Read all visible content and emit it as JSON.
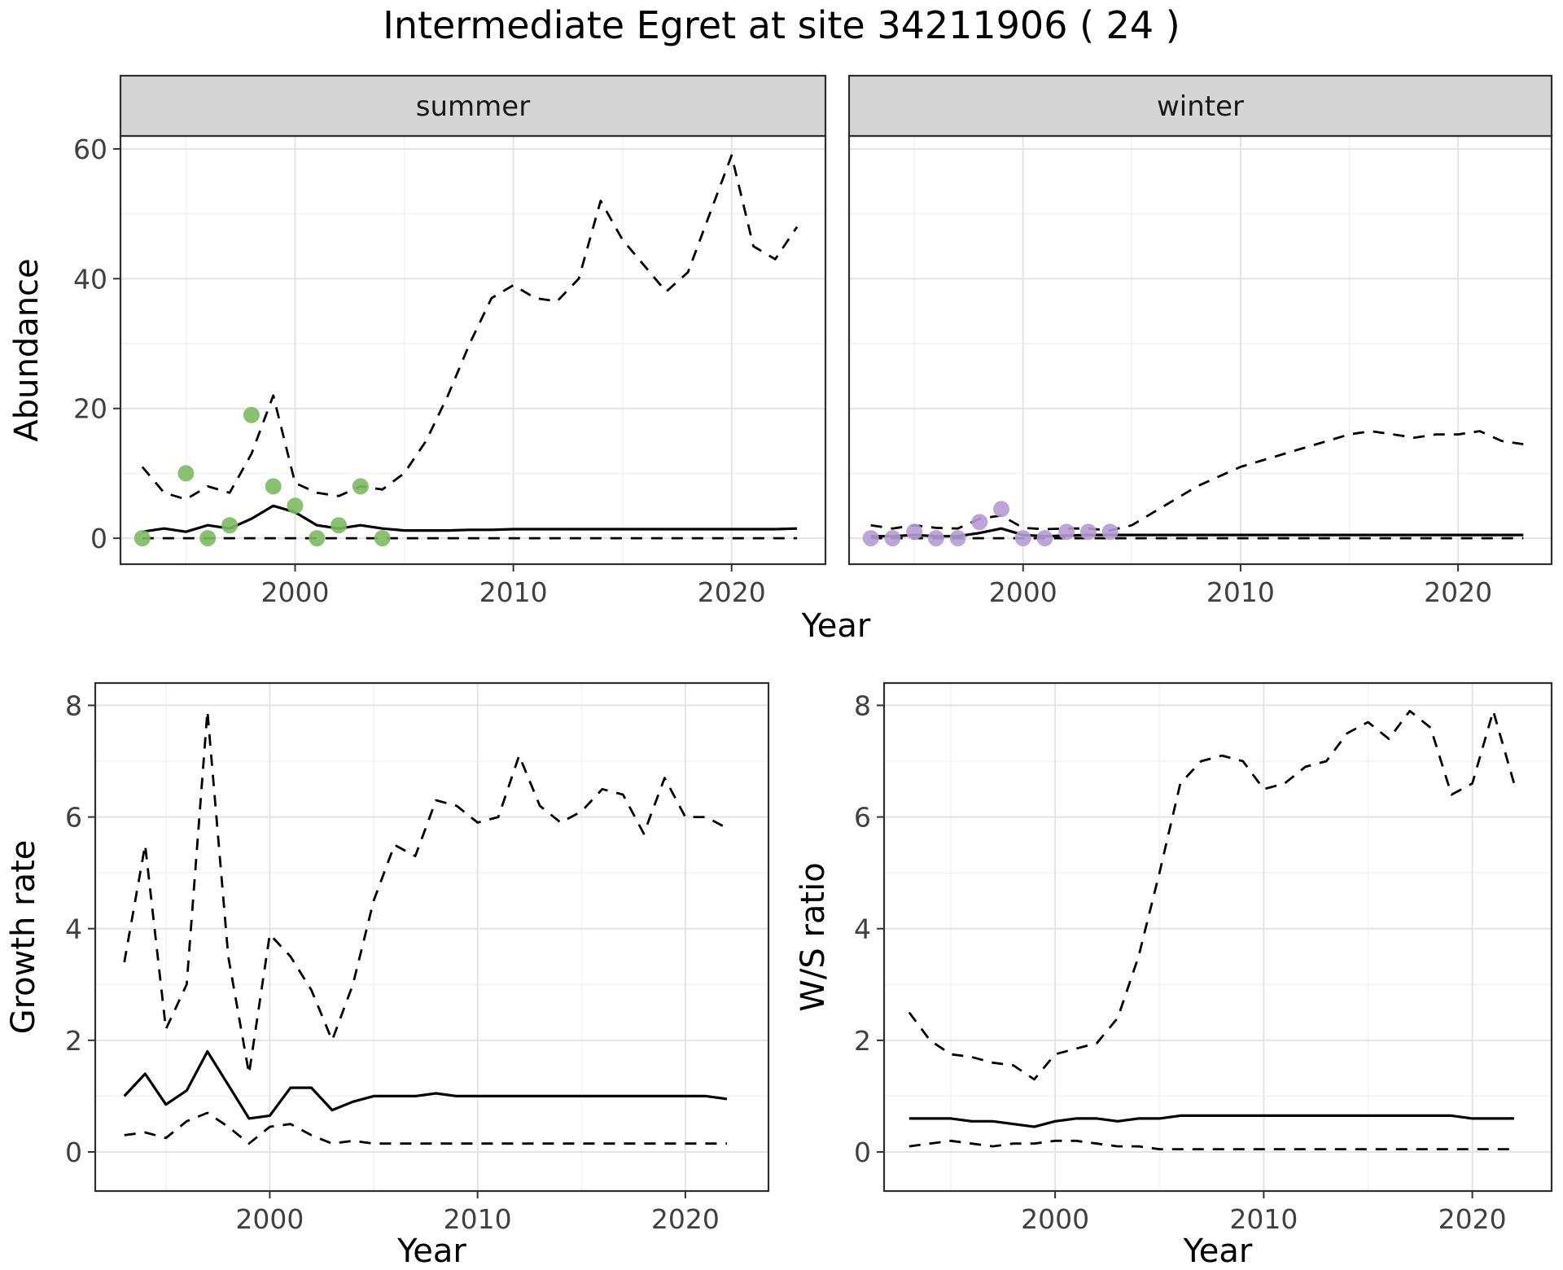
{
  "title": "Intermediate Egret at site 34211906 ( 24 )",
  "colors": {
    "line": "#000000",
    "strip_bg": "#d5d5d5",
    "panel_border": "#2e2e2e",
    "grid_major": "#e4e4e4",
    "grid_minor": "#f3f3f3",
    "tick_text": "#404040",
    "summer_points": "#7bbb5f",
    "winter_points": "#b79bd4"
  },
  "chart_data": [
    {
      "id": "abundance-summer",
      "type": "line",
      "facet_label": "summer",
      "xlabel": "Year",
      "ylabel": "Abundance",
      "xticks": [
        "2000",
        "2010",
        "2020"
      ],
      "xtick_values": [
        2000,
        2010,
        2020
      ],
      "yticks": [
        "0",
        "20",
        "40",
        "60"
      ],
      "ytick_values": [
        0,
        20,
        40,
        60
      ],
      "xlim": [
        1992,
        2024
      ],
      "ylim": [
        0,
        60
      ],
      "x": [
        1993,
        1994,
        1995,
        1996,
        1997,
        1998,
        1999,
        2000,
        2001,
        2002,
        2003,
        2004,
        2005,
        2006,
        2007,
        2008,
        2009,
        2010,
        2011,
        2012,
        2013,
        2014,
        2015,
        2016,
        2017,
        2018,
        2019,
        2020,
        2021,
        2022,
        2023
      ],
      "series": [
        {
          "name": "upper-ci",
          "style": "dashed",
          "values": [
            11,
            7,
            6,
            8,
            7,
            13,
            22,
            8.5,
            7,
            6.5,
            8,
            7.5,
            10,
            15,
            22,
            30,
            37,
            39,
            37,
            36.5,
            40,
            52,
            46,
            42,
            38,
            41,
            50,
            59,
            45,
            43,
            48
          ]
        },
        {
          "name": "median",
          "style": "solid",
          "values": [
            1,
            1.5,
            1,
            2,
            1.5,
            3,
            5,
            4,
            2,
            1.5,
            2,
            1.5,
            1.2,
            1.2,
            1.2,
            1.3,
            1.3,
            1.4,
            1.4,
            1.4,
            1.4,
            1.4,
            1.4,
            1.4,
            1.4,
            1.4,
            1.4,
            1.4,
            1.4,
            1.4,
            1.5
          ]
        },
        {
          "name": "lower-ci",
          "style": "dashed",
          "values": [
            0,
            0,
            0,
            0,
            0,
            0,
            0,
            0,
            0,
            0,
            0,
            0,
            0,
            0,
            0,
            0,
            0,
            0,
            0,
            0,
            0,
            0,
            0,
            0,
            0,
            0,
            0,
            0,
            0,
            0,
            0
          ]
        }
      ],
      "points": {
        "name": "observed",
        "color": "#7bbb5f",
        "x": [
          1993,
          1995,
          1996,
          1997,
          1998,
          1999,
          2000,
          2001,
          2002,
          2003,
          2004
        ],
        "y": [
          0,
          10,
          0,
          2,
          19,
          8,
          5,
          0,
          2,
          8,
          0
        ]
      }
    },
    {
      "id": "abundance-winter",
      "type": "line",
      "facet_label": "winter",
      "xlabel": "Year",
      "ylabel": "Abundance",
      "xticks": [
        "2000",
        "2010",
        "2020"
      ],
      "xtick_values": [
        2000,
        2010,
        2020
      ],
      "yticks": [
        "0",
        "20",
        "40",
        "60"
      ],
      "ytick_values": [
        0,
        20,
        40,
        60
      ],
      "xlim": [
        1992,
        2024
      ],
      "ylim": [
        0,
        60
      ],
      "x": [
        1993,
        1994,
        1995,
        1996,
        1997,
        1998,
        1999,
        2000,
        2001,
        2002,
        2003,
        2004,
        2005,
        2006,
        2007,
        2008,
        2009,
        2010,
        2011,
        2012,
        2013,
        2014,
        2015,
        2016,
        2017,
        2018,
        2019,
        2020,
        2021,
        2022,
        2023
      ],
      "series": [
        {
          "name": "upper-ci",
          "style": "dashed",
          "values": [
            2,
            1.5,
            2,
            1.6,
            1.5,
            3,
            3.5,
            1.6,
            1.4,
            1.5,
            1.5,
            1.2,
            2,
            4,
            6,
            8,
            9.5,
            11,
            12,
            13,
            14,
            15,
            16,
            16.5,
            16,
            15.5,
            16,
            16,
            16.5,
            15,
            14.5
          ]
        },
        {
          "name": "median",
          "style": "solid",
          "values": [
            0.3,
            0.3,
            0.5,
            0.3,
            0.3,
            0.8,
            1.5,
            0.5,
            0.3,
            0.4,
            0.5,
            0.5,
            0.5,
            0.5,
            0.5,
            0.5,
            0.5,
            0.5,
            0.5,
            0.5,
            0.5,
            0.5,
            0.5,
            0.5,
            0.5,
            0.5,
            0.5,
            0.5,
            0.5,
            0.5,
            0.5
          ]
        },
        {
          "name": "lower-ci",
          "style": "dashed",
          "values": [
            0,
            0,
            0,
            0,
            0,
            0,
            0,
            0,
            0,
            0,
            0,
            0,
            0,
            0,
            0,
            0,
            0,
            0,
            0,
            0,
            0,
            0,
            0,
            0,
            0,
            0,
            0,
            0,
            0,
            0,
            0
          ]
        }
      ],
      "points": {
        "name": "observed",
        "color": "#b79bd4",
        "x": [
          1993,
          1994,
          1995,
          1996,
          1997,
          1998,
          1999,
          2000,
          2001,
          2002,
          2003,
          2004
        ],
        "y": [
          0,
          0,
          1,
          0,
          0,
          2.5,
          4.5,
          0,
          0,
          1,
          1,
          1
        ]
      }
    },
    {
      "id": "growth-rate",
      "type": "line",
      "facet_label": "",
      "xlabel": "Year",
      "ylabel": "Growth rate",
      "xticks": [
        "2000",
        "2010",
        "2020"
      ],
      "xtick_values": [
        2000,
        2010,
        2020
      ],
      "yticks": [
        "0",
        "2",
        "4",
        "6",
        "8"
      ],
      "ytick_values": [
        0,
        2,
        4,
        6,
        8
      ],
      "xlim": [
        1992,
        2024
      ],
      "ylim": [
        0,
        8
      ],
      "x": [
        1993,
        1994,
        1995,
        1996,
        1997,
        1998,
        1999,
        2000,
        2001,
        2002,
        2003,
        2004,
        2005,
        2006,
        2007,
        2008,
        2009,
        2010,
        2011,
        2012,
        2013,
        2014,
        2015,
        2016,
        2017,
        2018,
        2019,
        2020,
        2021,
        2022
      ],
      "series": [
        {
          "name": "upper-ci",
          "style": "dashed",
          "values": [
            3.4,
            5.5,
            2.2,
            3,
            7.9,
            3.5,
            1.4,
            3.9,
            3.5,
            2.9,
            2,
            3,
            4.5,
            5.5,
            5.3,
            6.3,
            6.2,
            5.9,
            6,
            7.1,
            6.2,
            5.9,
            6.1,
            6.5,
            6.4,
            5.7,
            6.7,
            6,
            6,
            5.8
          ]
        },
        {
          "name": "median",
          "style": "solid",
          "values": [
            1,
            1.4,
            0.85,
            1.1,
            1.8,
            1.2,
            0.6,
            0.65,
            1.15,
            1.15,
            0.75,
            0.9,
            1,
            1,
            1,
            1.05,
            1,
            1,
            1,
            1,
            1,
            1,
            1,
            1,
            1,
            1,
            1,
            1,
            1,
            0.95
          ]
        },
        {
          "name": "lower-ci",
          "style": "dashed",
          "values": [
            0.3,
            0.35,
            0.25,
            0.55,
            0.7,
            0.45,
            0.15,
            0.45,
            0.5,
            0.3,
            0.15,
            0.2,
            0.15,
            0.15,
            0.15,
            0.15,
            0.15,
            0.15,
            0.15,
            0.15,
            0.15,
            0.15,
            0.15,
            0.15,
            0.15,
            0.15,
            0.15,
            0.15,
            0.15,
            0.15
          ]
        }
      ],
      "points": null
    },
    {
      "id": "ws-ratio",
      "type": "line",
      "facet_label": "",
      "xlabel": "Year",
      "ylabel": "W/S ratio",
      "xticks": [
        "2000",
        "2010",
        "2020"
      ],
      "xtick_values": [
        2000,
        2010,
        2020
      ],
      "yticks": [
        "0",
        "2",
        "4",
        "6",
        "8"
      ],
      "ytick_values": [
        0,
        2,
        4,
        6,
        8
      ],
      "xlim": [
        1992,
        2024
      ],
      "ylim": [
        0,
        8
      ],
      "x": [
        1993,
        1994,
        1995,
        1996,
        1997,
        1998,
        1999,
        2000,
        2001,
        2002,
        2003,
        2004,
        2005,
        2006,
        2007,
        2008,
        2009,
        2010,
        2011,
        2012,
        2013,
        2014,
        2015,
        2016,
        2017,
        2018,
        2019,
        2020,
        2021,
        2022
      ],
      "series": [
        {
          "name": "upper-ci",
          "style": "dashed",
          "values": [
            2.5,
            2,
            1.75,
            1.7,
            1.6,
            1.55,
            1.3,
            1.75,
            1.85,
            1.95,
            2.4,
            3.5,
            5,
            6.6,
            7,
            7.1,
            7,
            6.5,
            6.6,
            6.9,
            7,
            7.5,
            7.7,
            7.4,
            7.9,
            7.6,
            6.4,
            6.6,
            7.9,
            6.6
          ]
        },
        {
          "name": "median",
          "style": "solid",
          "values": [
            0.6,
            0.6,
            0.6,
            0.55,
            0.55,
            0.5,
            0.45,
            0.55,
            0.6,
            0.6,
            0.55,
            0.6,
            0.6,
            0.65,
            0.65,
            0.65,
            0.65,
            0.65,
            0.65,
            0.65,
            0.65,
            0.65,
            0.65,
            0.65,
            0.65,
            0.65,
            0.65,
            0.6,
            0.6,
            0.6
          ]
        },
        {
          "name": "lower-ci",
          "style": "dashed",
          "values": [
            0.1,
            0.15,
            0.2,
            0.15,
            0.1,
            0.15,
            0.15,
            0.2,
            0.2,
            0.15,
            0.1,
            0.1,
            0.05,
            0.05,
            0.05,
            0.05,
            0.05,
            0.05,
            0.05,
            0.05,
            0.05,
            0.05,
            0.05,
            0.05,
            0.05,
            0.05,
            0.05,
            0.05,
            0.05,
            0.05
          ]
        }
      ],
      "points": null
    }
  ]
}
